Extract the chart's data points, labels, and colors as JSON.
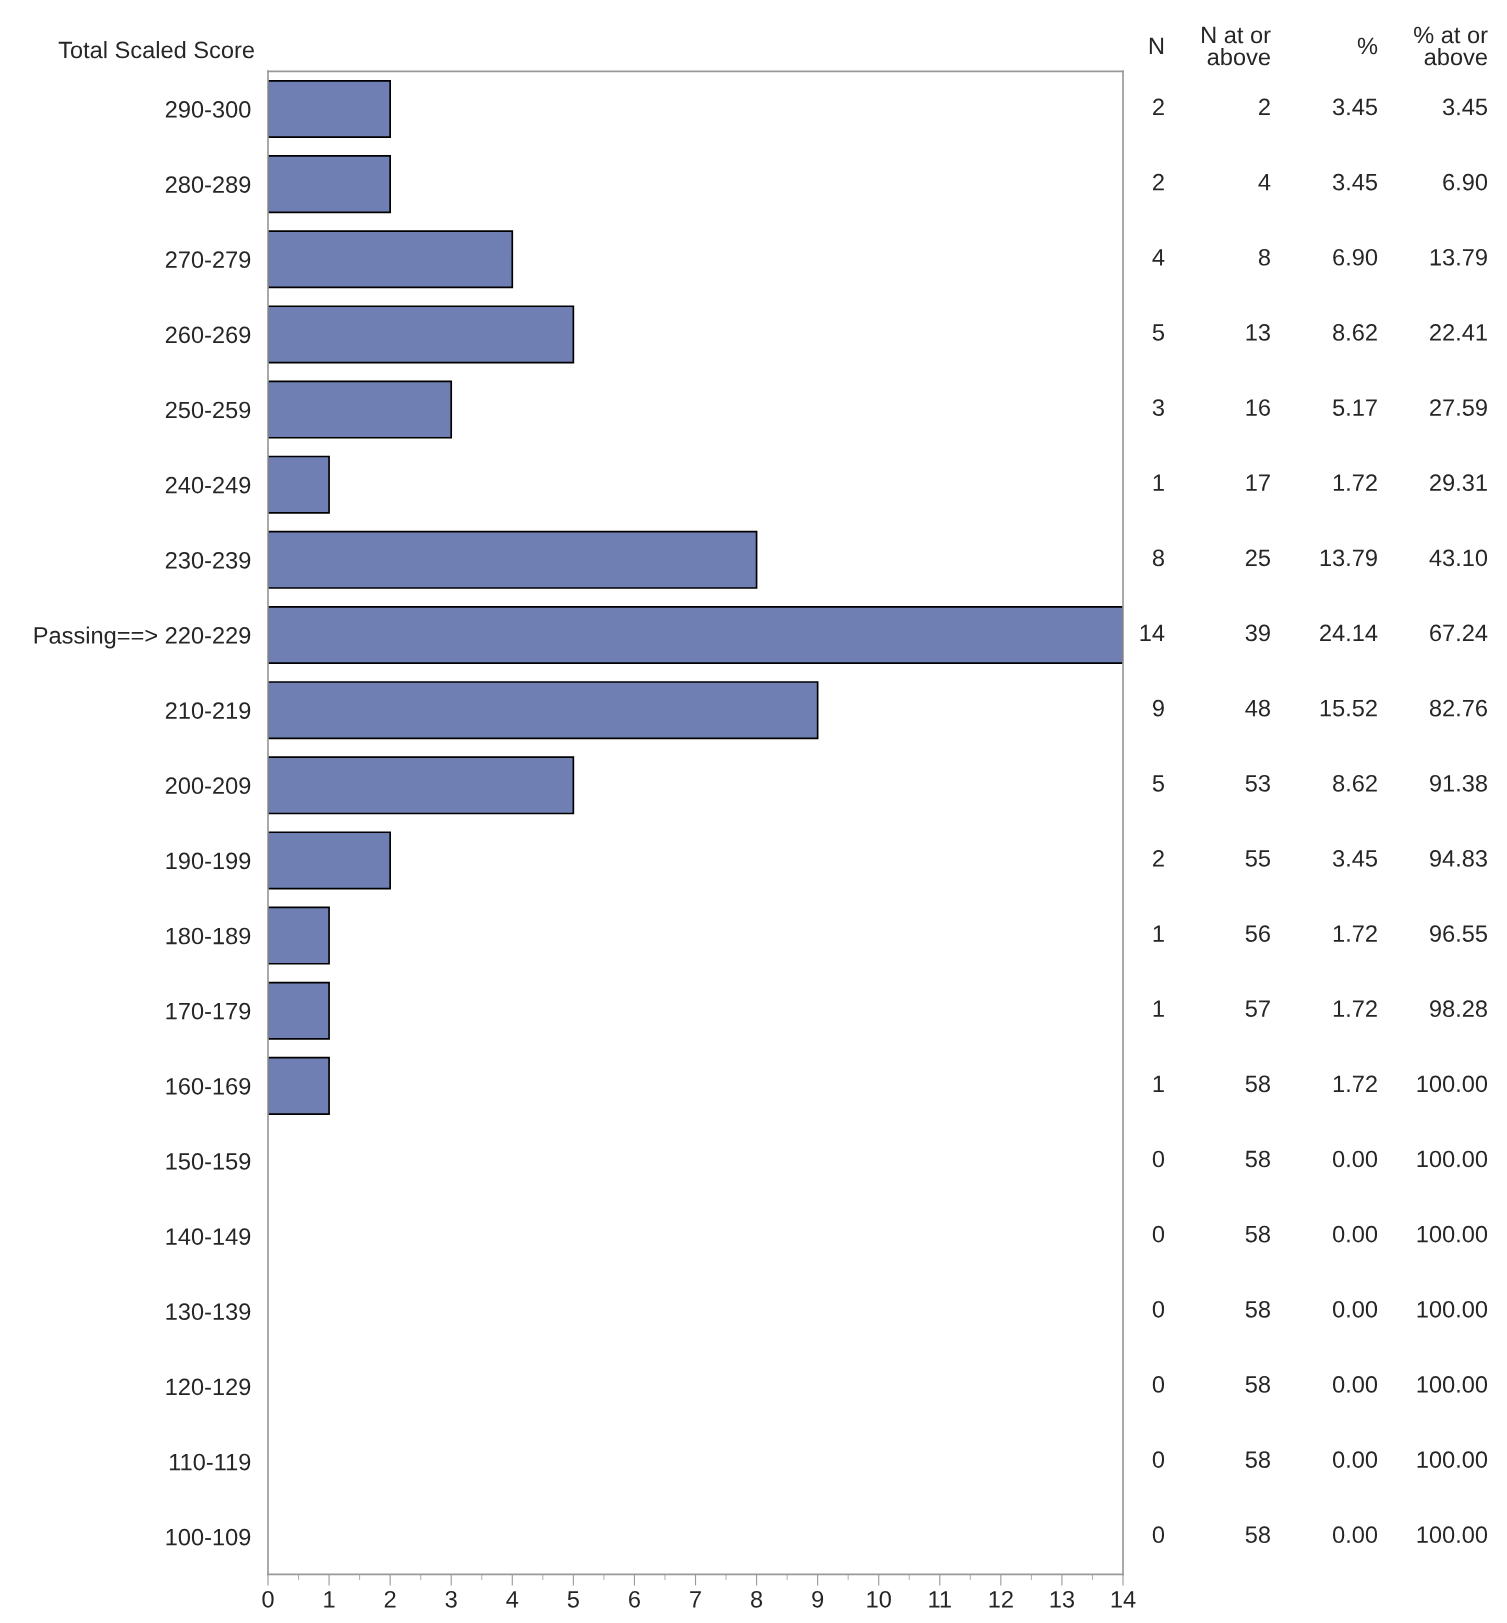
{
  "chart_data": {
    "type": "bar",
    "orientation": "horizontal",
    "ylabel": "Total Scaled Score",
    "categories": [
      "290-300",
      "280-289",
      "270-279",
      "260-269",
      "250-259",
      "240-249",
      "230-239",
      "Passing==> 220-229",
      "210-219",
      "200-209",
      "190-199",
      "180-189",
      "170-179",
      "160-169",
      "150-159",
      "140-149",
      "130-139",
      "120-129",
      "110-119",
      "100-109"
    ],
    "values": [
      2,
      2,
      4,
      5,
      3,
      1,
      8,
      14,
      9,
      5,
      2,
      1,
      1,
      1,
      0,
      0,
      0,
      0,
      0,
      0
    ],
    "color": "#6f7fb3",
    "xlim": [
      0,
      14
    ],
    "xticks": [
      0,
      1,
      2,
      3,
      4,
      5,
      6,
      7,
      8,
      9,
      10,
      11,
      12,
      13,
      14
    ],
    "data_labels": true,
    "grid": false,
    "legend": false,
    "annotations": [
      "N",
      "N at or\nabove",
      "%",
      "% at or\nabove",
      "2",
      "3.45",
      "3.45",
      "4",
      "3.45",
      "6.90",
      "8",
      "6.90",
      "13.79",
      "13",
      "8.62",
      "22.41",
      "16",
      "5.17",
      "27.59",
      "17",
      "1.72",
      "29.31",
      "25",
      "13.79",
      "43.10",
      "39",
      "24.14",
      "67.24",
      "48",
      "15.52",
      "82.76",
      "53",
      "8.62",
      "91.38",
      "55",
      "3.45",
      "94.83",
      "56",
      "1.72",
      "96.55",
      "57",
      "1.72",
      "98.28",
      "58",
      "1.72",
      "100.00",
      "58",
      "0.00",
      "100.00",
      "58",
      "0.00",
      "100.00",
      "58",
      "0.00",
      "100.00",
      "58",
      "0.00",
      "100.00",
      "58",
      "0.00",
      "100.00",
      "58",
      "0.00",
      "100.00"
    ]
  }
}
